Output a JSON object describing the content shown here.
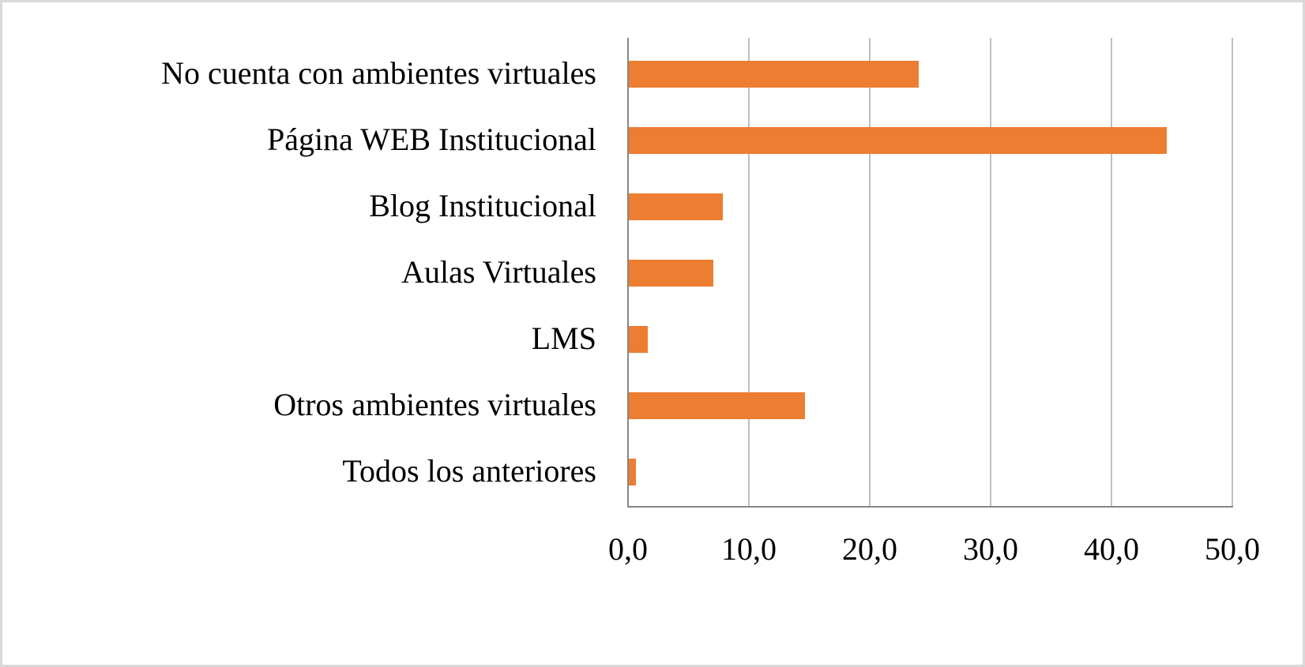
{
  "chart_data": {
    "type": "bar",
    "orientation": "horizontal",
    "title": "",
    "xlabel": "",
    "ylabel": "",
    "categories": [
      "No cuenta con ambientes virtuales",
      "Página WEB Institucional",
      "Blog Institucional",
      "Aulas Virtuales",
      "LMS",
      "Otros ambientes virtuales",
      "Todos los anteriores"
    ],
    "values": [
      24.0,
      44.5,
      7.8,
      7.0,
      1.6,
      14.6,
      0.6
    ],
    "xlim": [
      0,
      50
    ],
    "ticks": [
      0,
      10,
      20,
      30,
      40,
      50
    ],
    "tick_labels": [
      "0,0",
      "10,0",
      "20,0",
      "30,0",
      "40,0",
      "50,0"
    ],
    "grid": true,
    "legend": null,
    "bar_color": "#ed7d31"
  }
}
